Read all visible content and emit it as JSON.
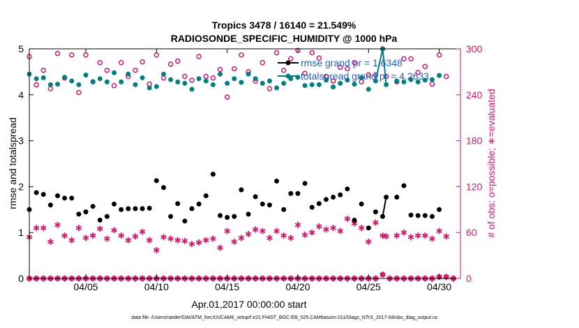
{
  "chart_data": {
    "type": "scatter",
    "title_line1": "Tropics 3478 / 16140 = 21.549%",
    "title_line2": "RADIOSONDE_SPECIFIC_HUMIDITY @ 1000 hPa",
    "xlabel": "Apr.01,2017 00:00:00 start",
    "ylabel_left": "rmse and totalspread",
    "ylabel_right": "# of obs: o=possible; ∗=evaluated",
    "footer": "data file: /Users/raeder/DAI/ATM_forcXX/CAM6_setup/f.e21.FHIST_BGC.f09_025.CAM6assim.011/Diags_NTrS_2017-04/obs_diag_output.nc",
    "xlim": [
      1,
      31.5
    ],
    "ylim_left": [
      0,
      5
    ],
    "ylim_right": [
      0,
      300
    ],
    "xticks": [
      {
        "value": 5,
        "label": "04/05"
      },
      {
        "value": 10,
        "label": "04/10"
      },
      {
        "value": 15,
        "label": "04/15"
      },
      {
        "value": 20,
        "label": "04/20"
      },
      {
        "value": 25,
        "label": "04/25"
      },
      {
        "value": 30,
        "label": "04/30"
      }
    ],
    "yticks_left": [
      "0",
      "1",
      "2",
      "3",
      "4",
      "5"
    ],
    "yticks_right": [
      "0",
      "60",
      "120",
      "180",
      "240",
      "300"
    ],
    "legend": [
      {
        "name": "rmse grand pr = 1.6348",
        "color": "#000000"
      },
      {
        "name": "totalspread grand pr = 4.2633",
        "color": "#008080"
      }
    ],
    "colors": {
      "rmse": "#000000",
      "spread": "#008080",
      "obs": "#d6156a",
      "legend_text": "#1f5fd6"
    },
    "series": [
      {
        "name": "rmse",
        "axis": "left",
        "points": [
          [
            1,
            1.5
          ],
          [
            1.5,
            1.87
          ],
          [
            2,
            1.83
          ],
          [
            2.5,
            1.6
          ],
          [
            3,
            1.8
          ],
          [
            3.5,
            1.75
          ],
          [
            4,
            1.75
          ],
          [
            4.5,
            1.4
          ],
          [
            5,
            1.45
          ],
          [
            5.5,
            1.57
          ],
          [
            6,
            1.27
          ],
          [
            6.5,
            1.35
          ],
          [
            7,
            1.62
          ],
          [
            7.5,
            1.5
          ],
          [
            8,
            1.52
          ],
          [
            8.5,
            1.52
          ],
          [
            9,
            1.52
          ],
          [
            9.5,
            1.53
          ],
          [
            10,
            2.13
          ],
          [
            10.5,
            1.98
          ],
          [
            11,
            1.35
          ],
          [
            11.5,
            1.63
          ],
          [
            12,
            1.25
          ],
          [
            12.5,
            1.52
          ],
          [
            13,
            1.62
          ],
          [
            13.5,
            1.8
          ],
          [
            14,
            2.27
          ],
          [
            14.5,
            1.37
          ],
          [
            15,
            1.33
          ],
          [
            15.5,
            1.35
          ],
          [
            16,
            1.93
          ],
          [
            16.5,
            1.4
          ],
          [
            17,
            1.78
          ],
          [
            17.5,
            1.62
          ],
          [
            18,
            1.6
          ],
          [
            18.5,
            2.12
          ],
          [
            19,
            1.5
          ],
          [
            19.5,
            1.85
          ],
          [
            20,
            1.85
          ],
          [
            20.5,
            2.07
          ],
          [
            21,
            1.55
          ],
          [
            21.5,
            1.63
          ],
          [
            22,
            1.72
          ],
          [
            22.5,
            1.77
          ],
          [
            23,
            1.82
          ],
          [
            23.5,
            1.95
          ],
          [
            24,
            1.27
          ],
          [
            24.5,
            1.62
          ],
          [
            25,
            1.1
          ],
          [
            25.5,
            1.45
          ],
          [
            26,
            1.35
          ],
          [
            26.25,
            1.77
          ],
          [
            27,
            1.77
          ],
          [
            27.5,
            2.02
          ],
          [
            28,
            1.38
          ],
          [
            28.5,
            1.37
          ],
          [
            29,
            1.37
          ],
          [
            29.5,
            1.35
          ],
          [
            30,
            1.5
          ]
        ],
        "line": [
          [
            26,
            1.35
          ],
          [
            26.25,
            1.77
          ]
        ]
      },
      {
        "name": "totalspread",
        "axis": "left",
        "points": [
          [
            1,
            4.45
          ],
          [
            1.5,
            4.35
          ],
          [
            2,
            4.37
          ],
          [
            2.5,
            4.22
          ],
          [
            3,
            4.23
          ],
          [
            3.5,
            4.38
          ],
          [
            4,
            4.3
          ],
          [
            4.5,
            4.22
          ],
          [
            5,
            4.43
          ],
          [
            5.5,
            4.28
          ],
          [
            6,
            4.35
          ],
          [
            6.5,
            4.28
          ],
          [
            7,
            4.48
          ],
          [
            7.5,
            4.28
          ],
          [
            8,
            4.45
          ],
          [
            8.5,
            4.22
          ],
          [
            9,
            4.37
          ],
          [
            9.5,
            4.15
          ],
          [
            10,
            4.18
          ],
          [
            10.5,
            4.45
          ],
          [
            11,
            4.33
          ],
          [
            11.5,
            4.28
          ],
          [
            12,
            4.25
          ],
          [
            12.5,
            4.12
          ],
          [
            13,
            4.35
          ],
          [
            13.5,
            4.3
          ],
          [
            14,
            4.22
          ],
          [
            14.5,
            4.45
          ],
          [
            15,
            4.25
          ],
          [
            15.5,
            4.35
          ],
          [
            16,
            4.27
          ],
          [
            16.5,
            4.45
          ],
          [
            17,
            4.35
          ],
          [
            17.5,
            4.25
          ],
          [
            18,
            4.3
          ],
          [
            18.5,
            4.15
          ],
          [
            19,
            4.25
          ],
          [
            19.5,
            4.35
          ],
          [
            20,
            4.38
          ],
          [
            20.5,
            4.2
          ],
          [
            21,
            4.22
          ],
          [
            21.5,
            4.22
          ],
          [
            22,
            4.32
          ],
          [
            22.5,
            4.17
          ],
          [
            23,
            4.25
          ],
          [
            23.5,
            4.32
          ],
          [
            24,
            4.23
          ],
          [
            24.5,
            4.37
          ],
          [
            25,
            4.12
          ],
          [
            25.5,
            4.3
          ],
          [
            26,
            5.0
          ],
          [
            26.25,
            4.22
          ],
          [
            27,
            4.3
          ],
          [
            27.5,
            4.28
          ],
          [
            28,
            4.33
          ],
          [
            28.5,
            4.28
          ],
          [
            29,
            4.32
          ],
          [
            29.5,
            4.33
          ],
          [
            30,
            4.42
          ]
        ],
        "line": [
          [
            25.5,
            4.3
          ],
          [
            26,
            5.0
          ],
          [
            26.25,
            4.22
          ]
        ]
      },
      {
        "name": "possible",
        "axis": "right",
        "points": [
          [
            1,
            290
          ],
          [
            1.5,
            253
          ],
          [
            2,
            272
          ],
          [
            2.5,
            248
          ],
          [
            3,
            294
          ],
          [
            3.5,
            262
          ],
          [
            4,
            292
          ],
          [
            4.5,
            243
          ],
          [
            5,
            292
          ],
          [
            5.5,
            257
          ],
          [
            6,
            282
          ],
          [
            6.5,
            272
          ],
          [
            7,
            252
          ],
          [
            7.5,
            282
          ],
          [
            8,
            264
          ],
          [
            8.5,
            272
          ],
          [
            9,
            283
          ],
          [
            9.5,
            254
          ],
          [
            10,
            292
          ],
          [
            10.5,
            262
          ],
          [
            11,
            280
          ],
          [
            11.5,
            284
          ],
          [
            12,
            264
          ],
          [
            12.5,
            259
          ],
          [
            13,
            290
          ],
          [
            13.5,
            264
          ],
          [
            14,
            262
          ],
          [
            14.5,
            273
          ],
          [
            15,
            237
          ],
          [
            15.5,
            274
          ],
          [
            16,
            292
          ],
          [
            16.5,
            270
          ],
          [
            17,
            258
          ],
          [
            17.5,
            282
          ],
          [
            18,
            248
          ],
          [
            18.5,
            295
          ],
          [
            19,
            272
          ],
          [
            19.5,
            287
          ],
          [
            20,
            298
          ],
          [
            20.5,
            268
          ],
          [
            21,
            295
          ],
          [
            21.5,
            288
          ],
          [
            22,
            264
          ],
          [
            22.5,
            258
          ],
          [
            23,
            276
          ],
          [
            23.5,
            274
          ],
          [
            24,
            282
          ],
          [
            24.5,
            257
          ],
          [
            25,
            266
          ],
          [
            25.5,
            266
          ],
          [
            26,
            300
          ],
          [
            26.25,
            264
          ],
          [
            27,
            257
          ],
          [
            27.5,
            287
          ],
          [
            28,
            287
          ],
          [
            28.5,
            269
          ],
          [
            29,
            277
          ],
          [
            29.5,
            254
          ],
          [
            30,
            292
          ],
          [
            30.5,
            264
          ]
        ]
      },
      {
        "name": "evaluated",
        "axis": "right",
        "points": [
          [
            1,
            54
          ],
          [
            1.5,
            66
          ],
          [
            2,
            66
          ],
          [
            2.5,
            48
          ],
          [
            3,
            70
          ],
          [
            3.5,
            56
          ],
          [
            4,
            50
          ],
          [
            4.5,
            66
          ],
          [
            5,
            53
          ],
          [
            5.5,
            56
          ],
          [
            6,
            65
          ],
          [
            6.5,
            52
          ],
          [
            7,
            63
          ],
          [
            7.5,
            56
          ],
          [
            8,
            50
          ],
          [
            8.5,
            55
          ],
          [
            9,
            61
          ],
          [
            9.5,
            50
          ],
          [
            10,
            37
          ],
          [
            10.5,
            54
          ],
          [
            11,
            52
          ],
          [
            11.5,
            50
          ],
          [
            12,
            49
          ],
          [
            12.5,
            45
          ],
          [
            13,
            47
          ],
          [
            13.5,
            50
          ],
          [
            14,
            52
          ],
          [
            14.5,
            40
          ],
          [
            15,
            62
          ],
          [
            15.5,
            48
          ],
          [
            16,
            53
          ],
          [
            16.5,
            58
          ],
          [
            17,
            64
          ],
          [
            17.5,
            62
          ],
          [
            18,
            53
          ],
          [
            18.5,
            62
          ],
          [
            19,
            56
          ],
          [
            19.5,
            53
          ],
          [
            20,
            70
          ],
          [
            20.5,
            57
          ],
          [
            21,
            60
          ],
          [
            21.5,
            68
          ],
          [
            22,
            64
          ],
          [
            22.5,
            66
          ],
          [
            23,
            62
          ],
          [
            23.5,
            78
          ],
          [
            24,
            72
          ],
          [
            24.5,
            66
          ],
          [
            25,
            48
          ],
          [
            25.5,
            73
          ],
          [
            26,
            56
          ],
          [
            26.25,
            55
          ],
          [
            27,
            56
          ],
          [
            27.5,
            60
          ],
          [
            28,
            54
          ],
          [
            28.5,
            56
          ],
          [
            29,
            56
          ],
          [
            29.5,
            52
          ],
          [
            30,
            62
          ],
          [
            30.5,
            55
          ]
        ]
      },
      {
        "name": "evaluated_bottom",
        "axis": "right",
        "points": [
          [
            1,
            0
          ],
          [
            1.5,
            0
          ],
          [
            2,
            0
          ],
          [
            2.5,
            0
          ],
          [
            3,
            0
          ],
          [
            3.5,
            0
          ],
          [
            4,
            0
          ],
          [
            4.5,
            0
          ],
          [
            5,
            0
          ],
          [
            5.5,
            0
          ],
          [
            6,
            0
          ],
          [
            6.5,
            0
          ],
          [
            7,
            0
          ],
          [
            7.5,
            0
          ],
          [
            8,
            0
          ],
          [
            8.5,
            0
          ],
          [
            9,
            0
          ],
          [
            9.5,
            0
          ],
          [
            10,
            0
          ],
          [
            10.5,
            0
          ],
          [
            11,
            0
          ],
          [
            11.5,
            0
          ],
          [
            12,
            0
          ],
          [
            12.5,
            0
          ],
          [
            13,
            0
          ],
          [
            13.5,
            0
          ],
          [
            14,
            0
          ],
          [
            14.5,
            0
          ],
          [
            15,
            0
          ],
          [
            15.5,
            0
          ],
          [
            16,
            0
          ],
          [
            16.5,
            0
          ],
          [
            17,
            0
          ],
          [
            17.5,
            0
          ],
          [
            18,
            0
          ],
          [
            18.5,
            0
          ],
          [
            19,
            0
          ],
          [
            19.5,
            0
          ],
          [
            20,
            0
          ],
          [
            20.5,
            0
          ],
          [
            21,
            0
          ],
          [
            21.5,
            0
          ],
          [
            22,
            0
          ],
          [
            22.5,
            0
          ],
          [
            23,
            0
          ],
          [
            23.5,
            0
          ],
          [
            24,
            0
          ],
          [
            24.5,
            0
          ],
          [
            25,
            0
          ],
          [
            25.5,
            0
          ],
          [
            26,
            5
          ],
          [
            26.5,
            0
          ],
          [
            27,
            0
          ],
          [
            27.5,
            0
          ],
          [
            28,
            0
          ],
          [
            28.5,
            0
          ],
          [
            29,
            0
          ],
          [
            29.5,
            0
          ],
          [
            30,
            2
          ],
          [
            30.5,
            2
          ],
          [
            31,
            0
          ]
        ]
      }
    ]
  }
}
